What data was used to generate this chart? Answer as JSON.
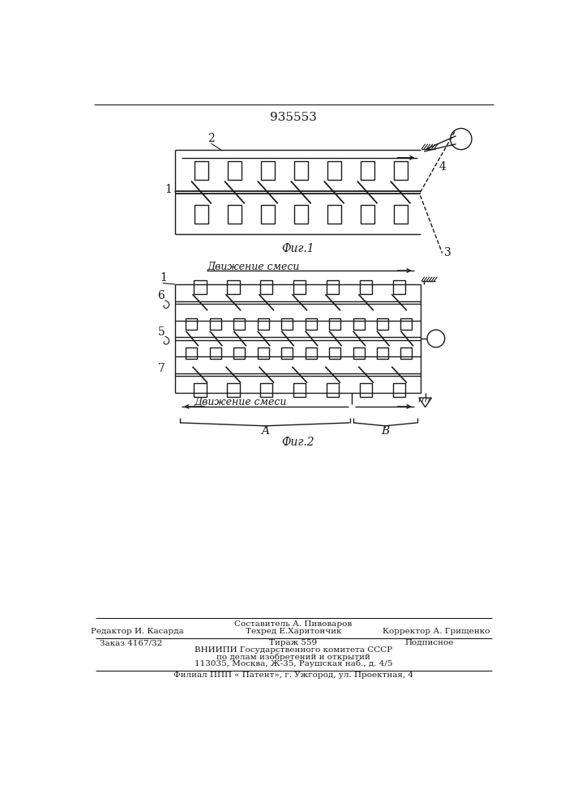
{
  "title_number": "935553",
  "fig1_label": "Фиг.1",
  "fig2_label": "Фиг.2",
  "movement_label_top": "Движение смеси",
  "movement_label_bot": "Движение смеси",
  "line_color": "#1a1a1a",
  "footer_composer": "Составитель А. Пивоваров",
  "footer_line1_left": "Редактор И. Касарда",
  "footer_line1_center": "Техред Е.Харитончик",
  "footer_line1_right": "Корректор А. Грищенко",
  "footer_line2_left": "Заказ 4167/32",
  "footer_line2_center": "Тираж 559",
  "footer_line2_right": "Подписное",
  "footer_line3": "ВНИИПИ Государственного комитета СССР",
  "footer_line4": "по делам изобретений и открытий",
  "footer_line5": "113035, Москва, Ж-35, Раушская наб., д. 4/5",
  "footer_line6": "Филиал ППП « Патент», г. Ужгород, ул. Проектная, 4"
}
